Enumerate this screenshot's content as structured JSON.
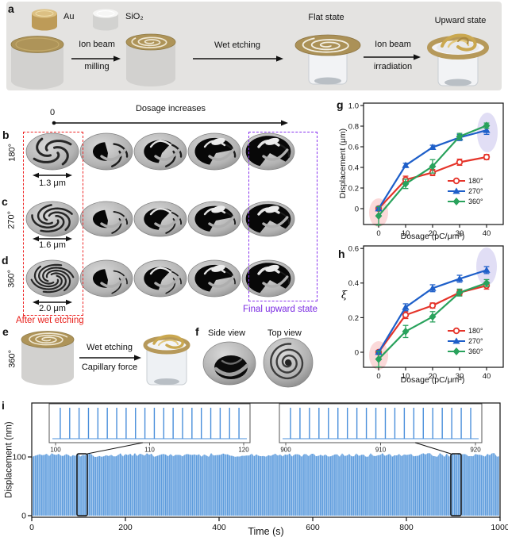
{
  "panel_a": {
    "label": "a",
    "legend_au": "Au",
    "legend_sio2": "SiO₂",
    "step1_top": "Ion beam",
    "step1_bottom": "milling",
    "step2_top": "Wet etching",
    "flat_label": "Flat state",
    "step3_top": "Ion beam",
    "step3_bottom": "irradiation",
    "upward_label": "Upward state"
  },
  "sem_grid": {
    "zero": "0",
    "dosage_label": "Dosage increases",
    "rows": [
      {
        "panel": "b",
        "angle": "180°",
        "scale": "1.3 μm"
      },
      {
        "panel": "c",
        "angle": "270°",
        "scale": "1.6 μm"
      },
      {
        "panel": "d",
        "angle": "360°",
        "scale": "2.0 μm"
      }
    ],
    "caption_red": "After wet etching",
    "caption_purple": "Final upward state"
  },
  "panel_e": {
    "label": "e",
    "angle": "360°",
    "arrow_top": "Wet etching",
    "arrow_bottom": "Capillary force"
  },
  "panel_f": {
    "label": "f",
    "side_view": "Side view",
    "top_view": "Top view"
  },
  "chart_data": [
    {
      "id": "g",
      "panel_label": "g",
      "type": "line",
      "xlabel": "Dosage (pC/μm²)",
      "ylabel": "Displacement (μm)",
      "x": [
        0,
        10,
        20,
        30,
        40
      ],
      "xticks": [
        "0",
        "10",
        "20",
        "30",
        "40"
      ],
      "yticks": [
        "0",
        "0.2",
        "0.4",
        "0.6",
        "0.8",
        "1.0"
      ],
      "ylim": [
        -0.15,
        1.02
      ],
      "xlim": [
        -5.6,
        46.2
      ],
      "grid": false,
      "legend_position": "bottom-right",
      "series": [
        {
          "name": "180°",
          "color": "#e5342a",
          "marker": "circle",
          "values": [
            0,
            0.28,
            0.35,
            0.45,
            0.5
          ],
          "errors": [
            0.02,
            0.035,
            0.03,
            0.03,
            0.025
          ]
        },
        {
          "name": "270°",
          "color": "#1e5fc9",
          "marker": "triangle",
          "values": [
            0,
            0.42,
            0.595,
            0.69,
            0.76
          ],
          "errors": [
            0.015,
            0.02,
            0.02,
            0.03,
            0.04
          ]
        },
        {
          "name": "360°",
          "color": "#29a25c",
          "marker": "diamond",
          "values": [
            -0.07,
            0.24,
            0.41,
            0.7,
            0.805
          ],
          "errors": [
            0.09,
            0.045,
            0.065,
            0.03,
            0.025
          ]
        }
      ],
      "highlight_colors": {
        "origin": "rgba(244,160,160,0.40)",
        "end": "rgba(155,146,222,0.30)"
      }
    },
    {
      "id": "h",
      "panel_label": "h",
      "type": "line",
      "xlabel": "Dosage (pC/μm²)",
      "ylabel": "ξ",
      "x": [
        0,
        10,
        20,
        30,
        40
      ],
      "xticks": [
        "0",
        "10",
        "20",
        "30",
        "40"
      ],
      "yticks": [
        "0",
        "0.2",
        "0.4",
        "0.6"
      ],
      "ylim": [
        -0.09,
        0.62
      ],
      "xlim": [
        -5.6,
        46.2
      ],
      "grid": false,
      "legend_position": "bottom-right",
      "series": [
        {
          "name": "180°",
          "color": "#e5342a",
          "marker": "circle",
          "values": [
            0,
            0.215,
            0.27,
            0.345,
            0.385
          ],
          "errors": [
            0.01,
            0.02,
            0.015,
            0.015,
            0.02
          ]
        },
        {
          "name": "270°",
          "color": "#1e5fc9",
          "marker": "triangle",
          "values": [
            0,
            0.26,
            0.37,
            0.425,
            0.475
          ],
          "errors": [
            0.01,
            0.02,
            0.02,
            0.02,
            0.02
          ]
        },
        {
          "name": "360°",
          "color": "#29a25c",
          "marker": "diamond",
          "values": [
            -0.04,
            0.12,
            0.205,
            0.345,
            0.4
          ],
          "errors": [
            0.045,
            0.035,
            0.03,
            0.02,
            0.02
          ]
        }
      ],
      "highlight_colors": {
        "origin": "rgba(244,160,160,0.40)",
        "end": "rgba(155,146,222,0.30)"
      }
    },
    {
      "id": "i",
      "panel_label": "i",
      "type": "area",
      "xlabel": "Time (s)",
      "ylabel": "Displacement (nm)",
      "xticks": [
        "0",
        "200",
        "400",
        "600",
        "800",
        "1000"
      ],
      "yticks": [
        "0",
        "100"
      ],
      "xlim": [
        0,
        1000
      ],
      "amplitude_nm": 105,
      "period_s": 1,
      "line_color": "#4a8fdb",
      "band_color": "#5e9cdc",
      "insets": [
        {
          "xlim": [
            100,
            120
          ],
          "xticks": [
            "100",
            "110",
            "120"
          ]
        },
        {
          "xlim": [
            900,
            920
          ],
          "xticks": [
            "900",
            "910",
            "920"
          ]
        }
      ]
    }
  ]
}
